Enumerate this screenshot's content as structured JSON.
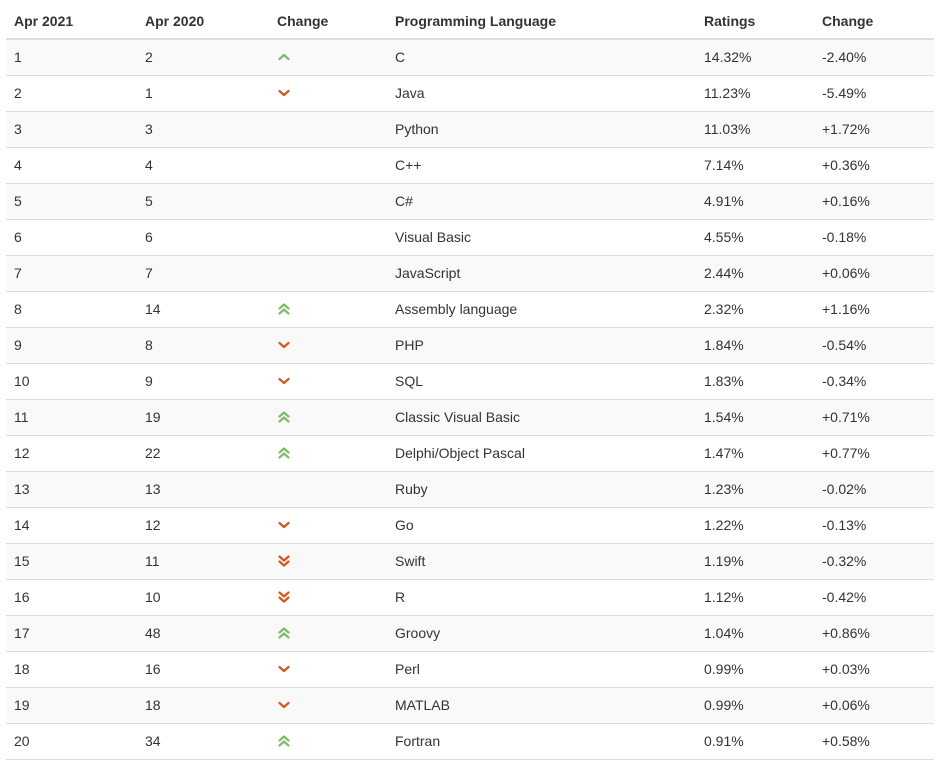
{
  "headers": {
    "current": "Apr 2021",
    "previous": "Apr 2020",
    "trend": "Change",
    "language": "Programming Language",
    "ratings": "Ratings",
    "change": "Change"
  },
  "colors": {
    "up": "#7dbb6b",
    "down": "#d4561e"
  },
  "rows": [
    {
      "current": "1",
      "previous": "2",
      "trend": "up",
      "language": "C",
      "ratings": "14.32%",
      "change": "-2.40%"
    },
    {
      "current": "2",
      "previous": "1",
      "trend": "down",
      "language": "Java",
      "ratings": "11.23%",
      "change": "-5.49%"
    },
    {
      "current": "3",
      "previous": "3",
      "trend": "none",
      "language": "Python",
      "ratings": "11.03%",
      "change": "+1.72%"
    },
    {
      "current": "4",
      "previous": "4",
      "trend": "none",
      "language": "C++",
      "ratings": "7.14%",
      "change": "+0.36%"
    },
    {
      "current": "5",
      "previous": "5",
      "trend": "none",
      "language": "C#",
      "ratings": "4.91%",
      "change": "+0.16%"
    },
    {
      "current": "6",
      "previous": "6",
      "trend": "none",
      "language": "Visual Basic",
      "ratings": "4.55%",
      "change": "-0.18%"
    },
    {
      "current": "7",
      "previous": "7",
      "trend": "none",
      "language": "JavaScript",
      "ratings": "2.44%",
      "change": "+0.06%"
    },
    {
      "current": "8",
      "previous": "14",
      "trend": "double-up",
      "language": "Assembly language",
      "ratings": "2.32%",
      "change": "+1.16%"
    },
    {
      "current": "9",
      "previous": "8",
      "trend": "down",
      "language": "PHP",
      "ratings": "1.84%",
      "change": "-0.54%"
    },
    {
      "current": "10",
      "previous": "9",
      "trend": "down",
      "language": "SQL",
      "ratings": "1.83%",
      "change": "-0.34%"
    },
    {
      "current": "11",
      "previous": "19",
      "trend": "double-up",
      "language": "Classic Visual Basic",
      "ratings": "1.54%",
      "change": "+0.71%"
    },
    {
      "current": "12",
      "previous": "22",
      "trend": "double-up",
      "language": "Delphi/Object Pascal",
      "ratings": "1.47%",
      "change": "+0.77%"
    },
    {
      "current": "13",
      "previous": "13",
      "trend": "none",
      "language": "Ruby",
      "ratings": "1.23%",
      "change": "-0.02%"
    },
    {
      "current": "14",
      "previous": "12",
      "trend": "down",
      "language": "Go",
      "ratings": "1.22%",
      "change": "-0.13%"
    },
    {
      "current": "15",
      "previous": "11",
      "trend": "double-down",
      "language": "Swift",
      "ratings": "1.19%",
      "change": "-0.32%"
    },
    {
      "current": "16",
      "previous": "10",
      "trend": "double-down",
      "language": "R",
      "ratings": "1.12%",
      "change": "-0.42%"
    },
    {
      "current": "17",
      "previous": "48",
      "trend": "double-up",
      "language": "Groovy",
      "ratings": "1.04%",
      "change": "+0.86%"
    },
    {
      "current": "18",
      "previous": "16",
      "trend": "down",
      "language": "Perl",
      "ratings": "0.99%",
      "change": "+0.03%"
    },
    {
      "current": "19",
      "previous": "18",
      "trend": "down",
      "language": "MATLAB",
      "ratings": "0.99%",
      "change": "+0.06%"
    },
    {
      "current": "20",
      "previous": "34",
      "trend": "double-up",
      "language": "Fortran",
      "ratings": "0.91%",
      "change": "+0.58%"
    }
  ]
}
